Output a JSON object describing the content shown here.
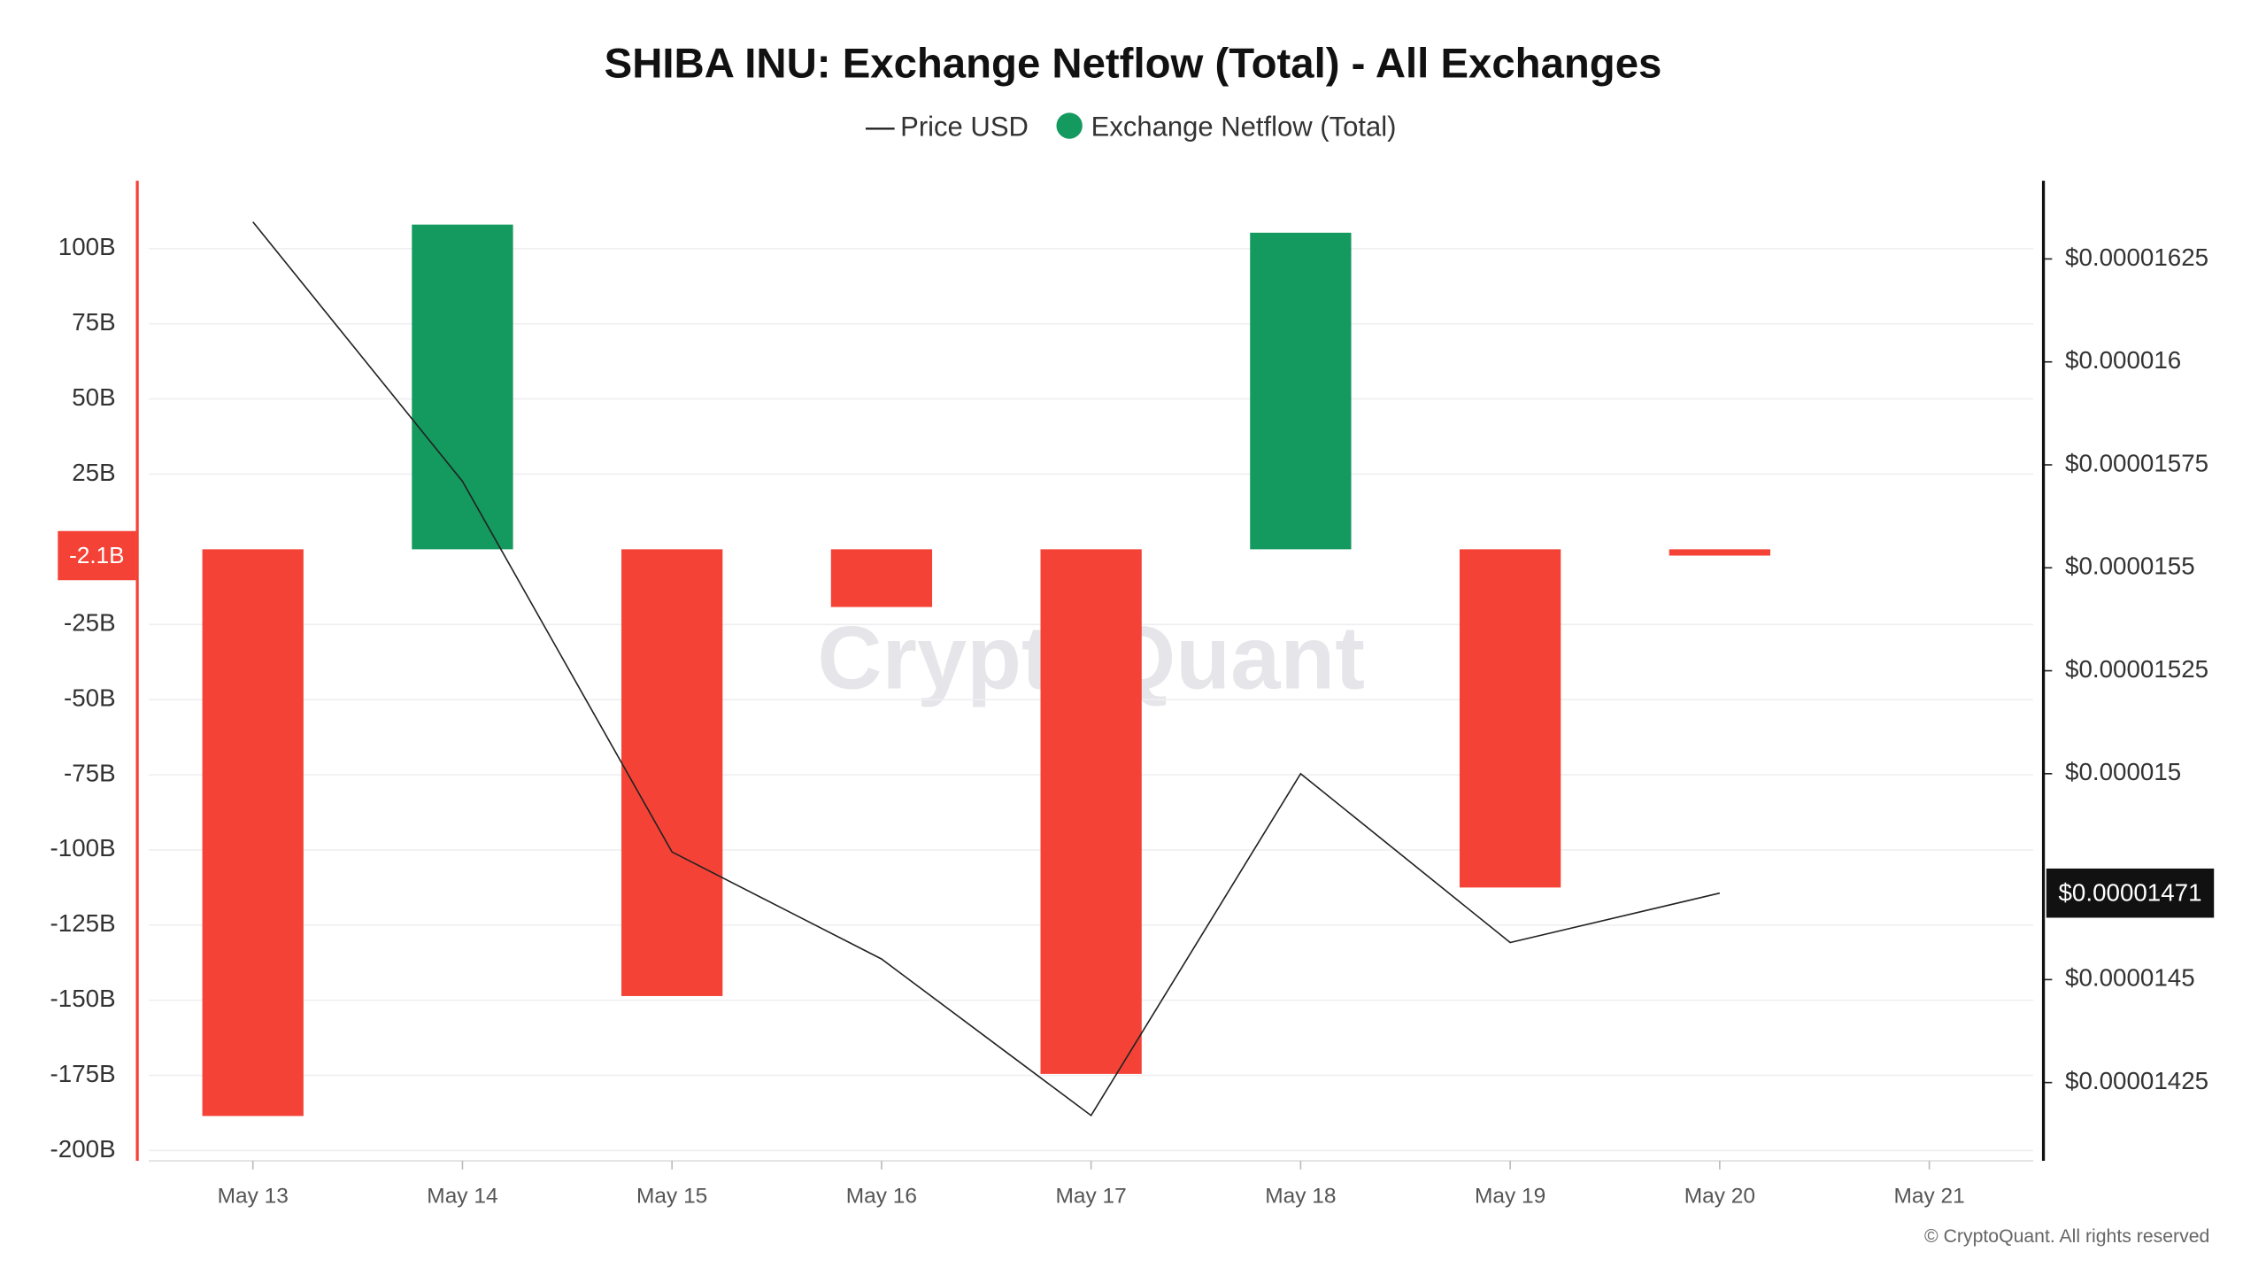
{
  "chart_data": {
    "type": "bar_line",
    "title": "SHIBA INU: Exchange Netflow (Total) - All Exchanges",
    "watermark": "CryptoQuant",
    "footer": "© CryptoQuant. All rights reserved",
    "categories": [
      "May 13",
      "May 14",
      "May 15",
      "May 16",
      "May 17",
      "May 18",
      "May 19",
      "May 20",
      "May 21"
    ],
    "series": [
      {
        "name": "Price USD",
        "type": "line",
        "axis": "y2",
        "color": "#222222",
        "values": [
          1.634e-05,
          1.571e-05,
          1.481e-05,
          1.455e-05,
          1.417e-05,
          1.5e-05,
          1.459e-05,
          1.471e-05,
          null
        ],
        "value_labels": [
          null,
          null,
          null,
          null,
          null,
          null,
          null,
          "$0.00001471",
          null
        ]
      },
      {
        "name": "Exchange Netflow (Total)",
        "type": "bar",
        "color": "#14995f",
        "negative_color": "#f44336",
        "values": [
          -188.5,
          108,
          -148.6,
          -19.2,
          -174.5,
          105.3,
          -112.5,
          -2.1,
          null
        ],
        "value_labels": [
          null,
          null,
          null,
          null,
          null,
          null,
          null,
          "-2.1B",
          null
        ]
      }
    ],
    "ylim": [
      -203.4,
      122.6
    ],
    "yticks": [
      {
        "value": 100,
        "label": "100B"
      },
      {
        "value": 75,
        "label": "75B"
      },
      {
        "value": 50,
        "label": "50B"
      },
      {
        "value": 25,
        "label": "25B"
      },
      {
        "value": -25,
        "label": "-25B"
      },
      {
        "value": -50,
        "label": "-50B"
      },
      {
        "value": -75,
        "label": "-75B"
      },
      {
        "value": -100,
        "label": "-100B"
      },
      {
        "value": -125,
        "label": "-125B"
      },
      {
        "value": -150,
        "label": "-150B"
      },
      {
        "value": -175,
        "label": "-175B"
      },
      {
        "value": -200,
        "label": "-200B"
      }
    ],
    "y2lim": [
      1.406e-05,
      1.644e-05
    ],
    "y2ticks": [
      {
        "value": 1.625e-05,
        "label": "$0.00001625"
      },
      {
        "value": 1.6e-05,
        "label": "$0.000016"
      },
      {
        "value": 1.575e-05,
        "label": "$0.00001575"
      },
      {
        "value": 1.55e-05,
        "label": "$0.0000155"
      },
      {
        "value": 1.525e-05,
        "label": "$0.00001525"
      },
      {
        "value": 1.5e-05,
        "label": "$0.000015"
      },
      {
        "value": 1.45e-05,
        "label": "$0.0000145"
      },
      {
        "value": 1.425e-05,
        "label": "$0.00001425"
      }
    ],
    "grid": true
  }
}
